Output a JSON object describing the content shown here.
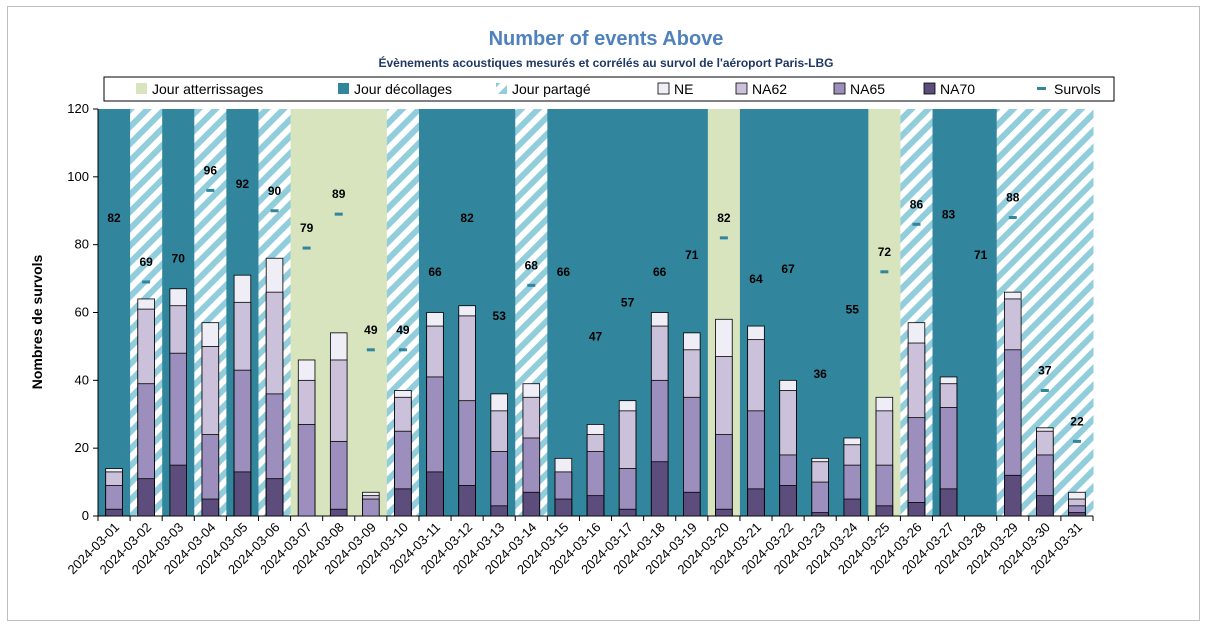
{
  "chart_data": {
    "type": "bar",
    "title": "Number of events Above",
    "subtitle": "Évènements acoustiques mesurés et corrélés au survol de l'aéroport Paris-LBG",
    "ylabel": "Nombres de survols",
    "xlabel": "",
    "ylim": [
      0,
      120
    ],
    "yticks": [
      0,
      20,
      40,
      60,
      80,
      100,
      120
    ],
    "grid": false,
    "legend_position": "top",
    "legend": [
      "Jour atterrissages",
      "Jour décollages",
      "Jour partagé",
      "NE",
      "NA62",
      "NA65",
      "NA70",
      "Survols"
    ],
    "colors": {
      "jour_atterrissages": "#d7e4bd",
      "jour_decollages": "#31859c",
      "jour_partage_stripe": "#92cddc",
      "NE": "#efedf6",
      "NA62": "#ccc1da",
      "NA65": "#9c8fbe",
      "NA70": "#5c4d7d",
      "survols": "#31859c"
    },
    "categories": [
      "2024-03-01",
      "2024-03-02",
      "2024-03-03",
      "2024-03-04",
      "2024-03-05",
      "2024-03-06",
      "2024-03-07",
      "2024-03-08",
      "2024-03-09",
      "2024-03-10",
      "2024-03-11",
      "2024-03-12",
      "2024-03-13",
      "2024-03-14",
      "2024-03-15",
      "2024-03-16",
      "2024-03-17",
      "2024-03-18",
      "2024-03-19",
      "2024-03-20",
      "2024-03-21",
      "2024-03-22",
      "2024-03-23",
      "2024-03-24",
      "2024-03-25",
      "2024-03-26",
      "2024-03-27",
      "2024-03-28",
      "2024-03-29",
      "2024-03-30",
      "2024-03-31"
    ],
    "day_type": [
      "D",
      "P",
      "D",
      "P",
      "D",
      "P",
      "A",
      "A",
      "A",
      "P",
      "D",
      "D",
      "D",
      "P",
      "D",
      "D",
      "D",
      "D",
      "D",
      "A",
      "D",
      "D",
      "D",
      "D",
      "A",
      "P",
      "D",
      "D",
      "P",
      "P",
      "P"
    ],
    "series": [
      {
        "name": "NE",
        "values": [
          14,
          64,
          67,
          57,
          71,
          76,
          46,
          54,
          7,
          37,
          60,
          62,
          36,
          39,
          17,
          27,
          34,
          60,
          54,
          58,
          56,
          40,
          17,
          23,
          35,
          57,
          41,
          0,
          66,
          26,
          7
        ]
      },
      {
        "name": "NA62",
        "values": [
          13,
          61,
          62,
          50,
          63,
          66,
          40,
          46,
          6,
          35,
          56,
          59,
          31,
          35,
          13,
          24,
          31,
          56,
          49,
          47,
          52,
          37,
          16,
          21,
          31,
          51,
          39,
          0,
          64,
          25,
          5
        ]
      },
      {
        "name": "NA65",
        "values": [
          9,
          39,
          48,
          24,
          43,
          36,
          27,
          22,
          5,
          25,
          41,
          34,
          19,
          23,
          13,
          19,
          14,
          40,
          35,
          24,
          31,
          18,
          10,
          15,
          15,
          29,
          32,
          0,
          49,
          18,
          3
        ]
      },
      {
        "name": "NA70",
        "values": [
          2,
          11,
          15,
          5,
          13,
          11,
          0,
          2,
          0,
          8,
          13,
          9,
          3,
          7,
          5,
          6,
          2,
          16,
          7,
          2,
          8,
          9,
          1,
          5,
          3,
          4,
          8,
          0,
          12,
          6,
          1
        ]
      },
      {
        "name": "Survols",
        "values": [
          82,
          69,
          70,
          96,
          92,
          90,
          79,
          89,
          49,
          49,
          66,
          82,
          53,
          68,
          66,
          47,
          57,
          66,
          71,
          82,
          64,
          67,
          36,
          55,
          72,
          86,
          83,
          71,
          88,
          37,
          22
        ]
      }
    ]
  }
}
